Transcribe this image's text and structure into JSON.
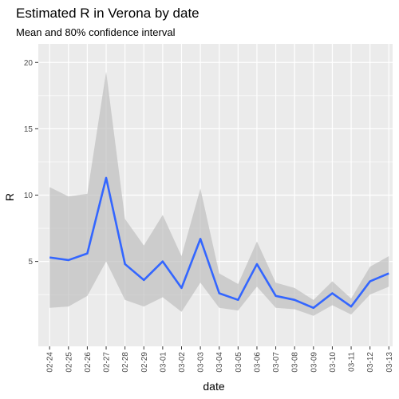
{
  "chart_data": {
    "type": "line",
    "title": "Estimated R in Verona by date",
    "subtitle": "Mean and 80% confidence interval",
    "xlabel": "date",
    "ylabel": "R",
    "categories": [
      "02-24",
      "02-25",
      "02-26",
      "02-27",
      "02-28",
      "02-29",
      "03-01",
      "03-02",
      "03-03",
      "03-04",
      "03-05",
      "03-06",
      "03-07",
      "03-08",
      "03-09",
      "03-10",
      "03-11",
      "03-12",
      "03-13"
    ],
    "series": [
      {
        "values": [
          5.3,
          5.1,
          5.6,
          11.3,
          4.8,
          3.6,
          5.0,
          3.0,
          6.7,
          2.6,
          2.1,
          4.8,
          2.4,
          2.1,
          1.5,
          2.6,
          1.6,
          3.5,
          4.1
        ]
      }
    ],
    "interval": {
      "upper": [
        10.6,
        9.9,
        10.1,
        19.3,
        8.2,
        6.2,
        8.5,
        5.4,
        10.5,
        4.1,
        3.3,
        6.5,
        3.4,
        3.0,
        2.1,
        3.5,
        2.2,
        4.6,
        5.4
      ],
      "lower": [
        1.5,
        1.6,
        2.4,
        5.0,
        2.1,
        1.6,
        2.3,
        1.2,
        3.4,
        1.5,
        1.3,
        3.1,
        1.5,
        1.4,
        0.9,
        1.7,
        1.0,
        2.5,
        3.1
      ]
    },
    "ylim": [
      0,
      20
    ],
    "yticks": [
      5,
      10,
      15,
      20
    ],
    "grid": true,
    "legend": "none",
    "colors": {
      "panel": "#ebebeb",
      "grid_major": "#ffffff",
      "ribbon": "#bfbfbf",
      "line": "#3366ff"
    }
  }
}
